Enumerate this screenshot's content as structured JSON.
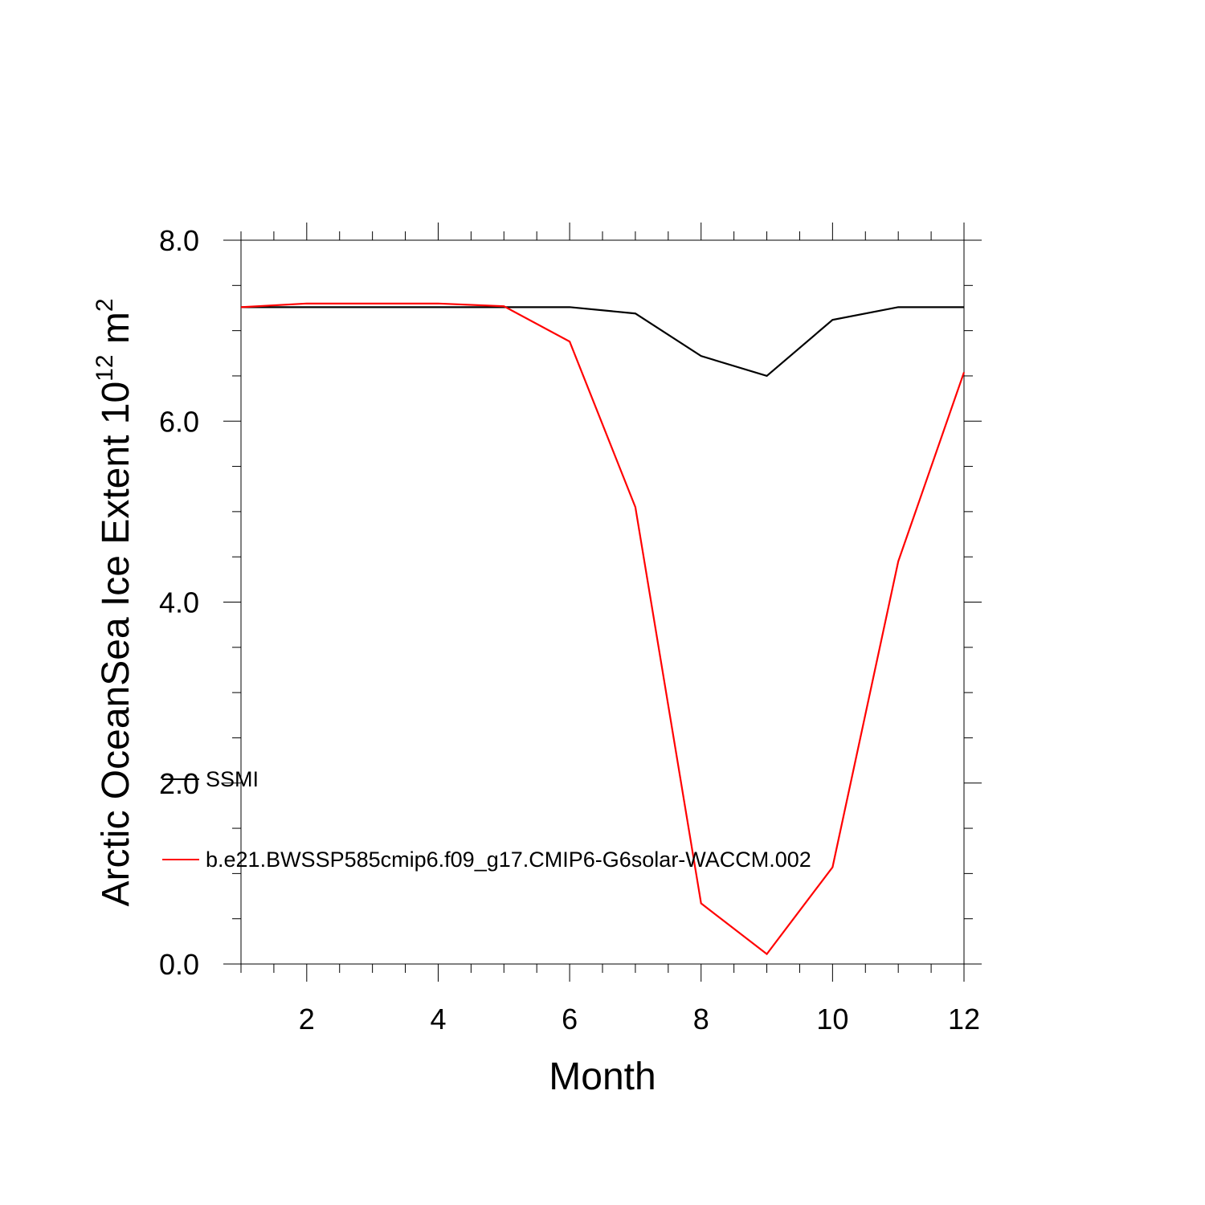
{
  "chart_data": {
    "type": "line",
    "xlabel": "Month",
    "ylabel": "Arctic OceanSea Ice Extent 10",
    "ylabel_sup": "12",
    "ylabel_unit": " m",
    "ylabel_unit_sup": "2",
    "xlim": [
      1,
      12
    ],
    "ylim": [
      0,
      8
    ],
    "x_ticks": [
      2,
      4,
      6,
      8,
      10,
      12
    ],
    "x_tick_labels": [
      "2",
      "4",
      "6",
      "8",
      "10",
      "12"
    ],
    "y_ticks": [
      0,
      2,
      4,
      6,
      8
    ],
    "y_tick_labels": [
      "0.0",
      "2.0",
      "4.0",
      "6.0",
      "8.0"
    ],
    "grid": false,
    "legend_position": "lower-left inside",
    "x": [
      1,
      2,
      3,
      4,
      5,
      6,
      7,
      8,
      9,
      10,
      11,
      12
    ],
    "series": [
      {
        "name": "SSMI",
        "color": "#000000",
        "values": [
          7.26,
          7.26,
          7.26,
          7.26,
          7.26,
          7.26,
          7.19,
          6.72,
          6.5,
          7.12,
          7.26,
          7.26
        ]
      },
      {
        "name": "b.e21.BWSSP585cmip6.f09_g17.CMIP6-G6solar-WACCM.002",
        "color": "#ff0000",
        "values": [
          7.26,
          7.3,
          7.3,
          7.3,
          7.27,
          6.88,
          5.05,
          0.67,
          0.11,
          1.07,
          4.45,
          6.54
        ]
      }
    ]
  }
}
